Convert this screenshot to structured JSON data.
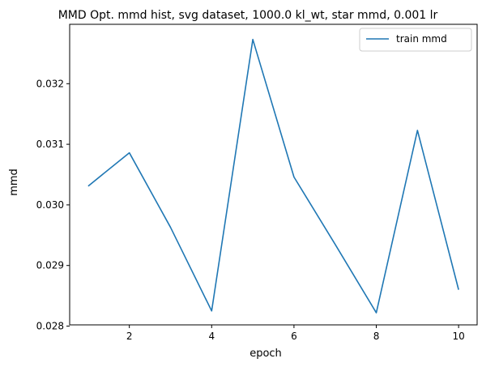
{
  "chart_data": {
    "type": "line",
    "title": "MMD Opt. mmd hist, svg dataset, 1000.0 kl_wt, star mmd, 0.001 lr",
    "xlabel": "epoch",
    "ylabel": "mmd",
    "xlim": [
      0.55,
      10.45
    ],
    "ylim": [
      0.02802,
      0.03298
    ],
    "xticks": [
      2,
      4,
      6,
      8,
      10
    ],
    "xtick_labels": [
      "2",
      "4",
      "6",
      "8",
      "10"
    ],
    "yticks": [
      0.028,
      0.029,
      0.03,
      0.031,
      0.032
    ],
    "ytick_labels": [
      "0.028",
      "0.029",
      "0.030",
      "0.031",
      "0.032"
    ],
    "grid": false,
    "legend": "top-right",
    "series": [
      {
        "name": "train mmd",
        "color": "#1f77b4",
        "x": [
          1,
          2,
          3,
          4,
          5,
          6,
          7,
          8,
          9,
          10
        ],
        "y": [
          0.03031,
          0.03086,
          0.02963,
          0.02825,
          0.03273,
          0.03046,
          0.02935,
          0.02822,
          0.03123,
          0.0286
        ]
      }
    ]
  }
}
